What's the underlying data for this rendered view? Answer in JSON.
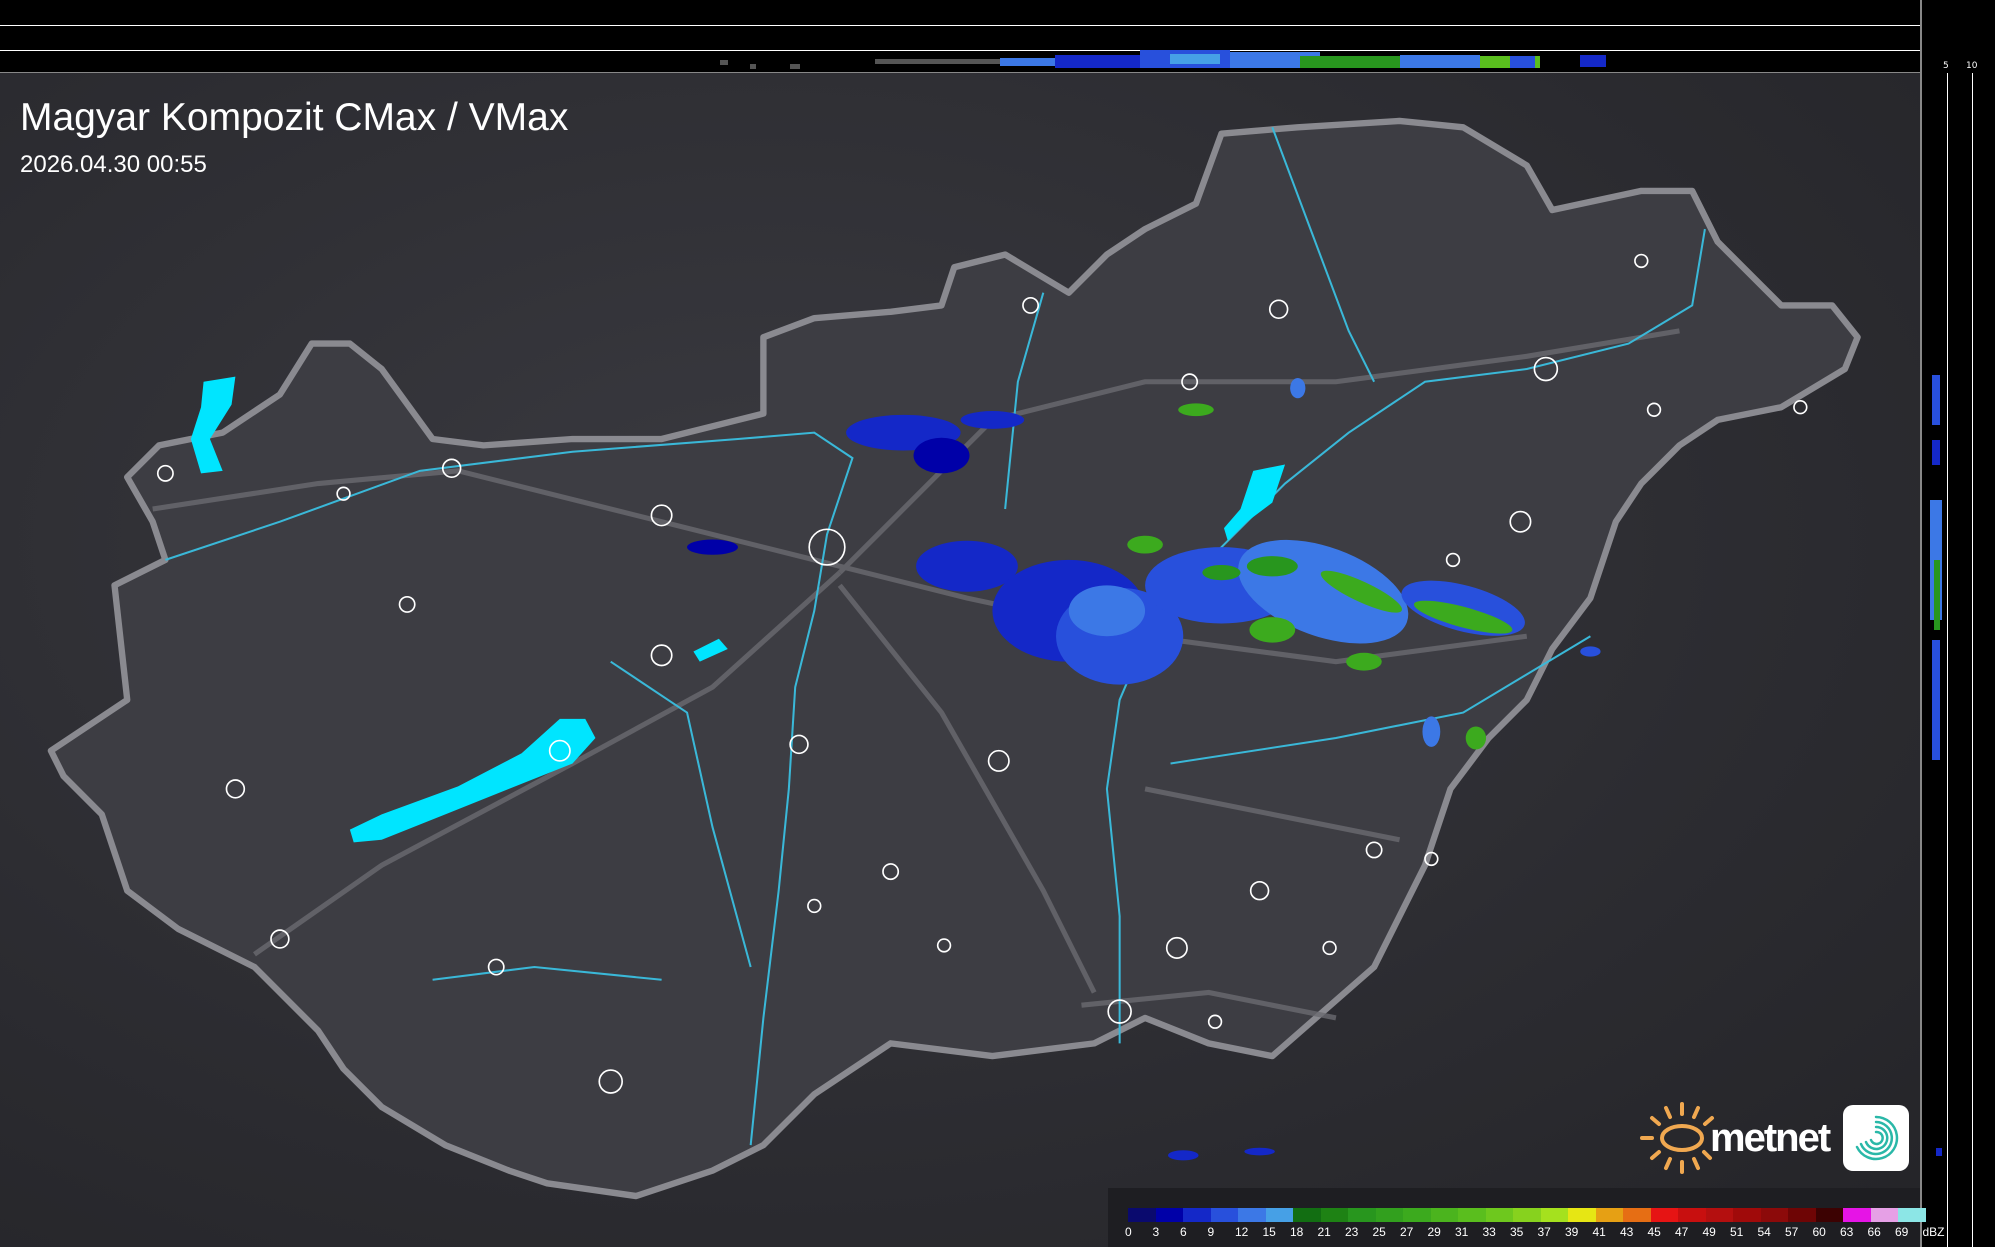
{
  "header": {
    "title": "Magyar Kompozit CMax / VMax",
    "timestamp": "2026.04.30 00:55"
  },
  "top_profile": {
    "axis_labels": [
      "10",
      "5"
    ]
  },
  "side_profile": {
    "axis_labels": [
      "5",
      "10"
    ]
  },
  "legend": {
    "unit": "dBZ",
    "values": [
      "0",
      "3",
      "6",
      "9",
      "12",
      "15",
      "18",
      "21",
      "23",
      "25",
      "27",
      "29",
      "31",
      "33",
      "35",
      "37",
      "39",
      "41",
      "43",
      "45",
      "47",
      "49",
      "51",
      "54",
      "57",
      "60",
      "63",
      "66",
      "69"
    ],
    "colors": [
      "#0a0a6e",
      "#0000a8",
      "#1428c8",
      "#2850dc",
      "#3c78e6",
      "#46a0e6",
      "#126e12",
      "#1e8214",
      "#28961e",
      "#32a01e",
      "#3caa1e",
      "#4bb41e",
      "#5abe1e",
      "#6ec81e",
      "#87d21e",
      "#a5e11e",
      "#e6e614",
      "#e6a014",
      "#e66e14",
      "#e61414",
      "#c80f0f",
      "#b40f0f",
      "#a00a0a",
      "#8c0a0a",
      "#6e0505",
      "#3c0202",
      "#e614e6",
      "#e6a0e6",
      "#8ce6e6"
    ]
  },
  "logo": {
    "name": "metnet",
    "sun_color": "#f0a850",
    "swirl_color": "#2ab8a8"
  },
  "colors": {
    "water": "#00e5ff",
    "river": "#3ab8d8",
    "border": "#8a8a90",
    "background": "#2c2c31"
  }
}
